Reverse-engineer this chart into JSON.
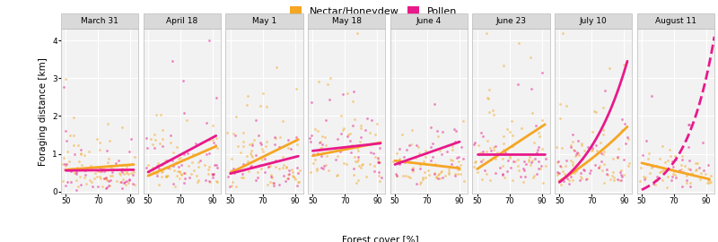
{
  "panels": [
    "March 31",
    "April 18",
    "May 1",
    "May 18",
    "June 4",
    "June 23",
    "July 10",
    "August 11"
  ],
  "x_range": [
    47,
    95
  ],
  "y_range": [
    -0.05,
    4.3
  ],
  "x_ticks": [
    50,
    70,
    90
  ],
  "y_ticks": [
    0,
    1,
    2,
    3,
    4
  ],
  "xlabel": "Forest cover [%]",
  "ylabel": "Foraging distance [km]",
  "color_nectar": "#F5A623",
  "color_pollen": "#E8198B",
  "background_color": "#F2F2F2",
  "grid_color": "#FFFFFF",
  "header_color": "#D9D9D9",
  "legend_labels": [
    "Nectar/Honeydew",
    "Pollen"
  ],
  "trend_lines": {
    "March 31": {
      "nectar": {
        "x0": 50,
        "x1": 92,
        "y0": 0.58,
        "y1": 0.72,
        "curve": 0.0,
        "dashed": false
      },
      "pollen": {
        "x0": 50,
        "x1": 92,
        "y0": 0.56,
        "y1": 0.58,
        "curve": 0.0,
        "dashed": false
      }
    },
    "April 18": {
      "nectar": {
        "x0": 50,
        "x1": 92,
        "y0": 0.42,
        "y1": 1.2,
        "curve": 0.0,
        "dashed": false
      },
      "pollen": {
        "x0": 50,
        "x1": 92,
        "y0": 0.52,
        "y1": 1.48,
        "curve": 0.0,
        "dashed": false
      }
    },
    "May 1": {
      "nectar": {
        "x0": 50,
        "x1": 92,
        "y0": 0.5,
        "y1": 1.38,
        "curve": 0.0,
        "dashed": false
      },
      "pollen": {
        "x0": 50,
        "x1": 92,
        "y0": 0.48,
        "y1": 0.94,
        "curve": 0.0,
        "dashed": false
      }
    },
    "May 18": {
      "nectar": {
        "x0": 50,
        "x1": 92,
        "y0": 0.95,
        "y1": 1.3,
        "curve": 0.0,
        "dashed": false
      },
      "pollen": {
        "x0": 50,
        "x1": 92,
        "y0": 1.08,
        "y1": 1.28,
        "curve": 0.0,
        "dashed": false
      }
    },
    "June 4": {
      "nectar": {
        "x0": 50,
        "x1": 90,
        "y0": 0.82,
        "y1": 0.62,
        "curve": 0.0,
        "dashed": false
      },
      "pollen": {
        "x0": 50,
        "x1": 90,
        "y0": 0.72,
        "y1": 1.32,
        "curve": 0.0,
        "dashed": false
      }
    },
    "June 23": {
      "nectar": {
        "x0": 50,
        "x1": 92,
        "y0": 0.6,
        "y1": 1.78,
        "curve": 0.0,
        "dashed": false
      },
      "pollen": {
        "x0": 50,
        "x1": 92,
        "y0": 1.0,
        "y1": 1.0,
        "curve": 0.0,
        "dashed": false
      }
    },
    "July 10": {
      "nectar": {
        "x0": 50,
        "x1": 92,
        "y0": 0.28,
        "y1": 1.72,
        "curve": 0.5,
        "dashed": false
      },
      "pollen": {
        "x0": 50,
        "x1": 92,
        "y0": 0.25,
        "y1": 3.45,
        "curve": 1.5,
        "dashed": false
      }
    },
    "August 11": {
      "nectar": {
        "x0": 50,
        "x1": 92,
        "y0": 0.76,
        "y1": 0.33,
        "curve": 0.0,
        "dashed": false
      },
      "pollen": {
        "x0": 50,
        "x1": 95,
        "y0": 0.05,
        "y1": 4.1,
        "curve": 2.5,
        "dashed": true
      }
    }
  }
}
